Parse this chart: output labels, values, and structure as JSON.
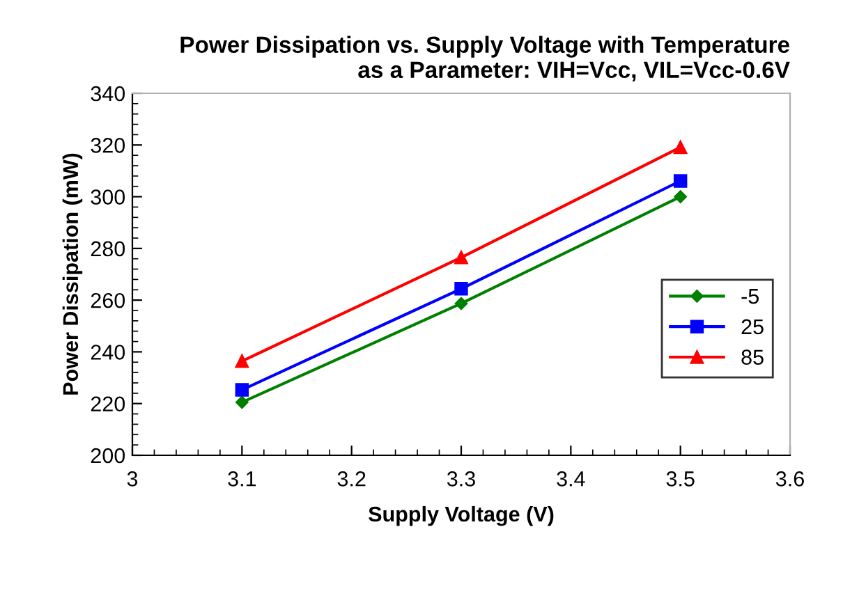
{
  "chart_data": {
    "type": "line",
    "title": "Power Dissipation vs. Supply Voltage with Temperature\nas a Parameter: VIH=Vcc, VIL=Vcc-0.6V",
    "xlabel": "Supply Voltage (V)",
    "ylabel": "Power Dissipation (mW)",
    "x": [
      3.1,
      3.3,
      3.5
    ],
    "series": [
      {
        "name": "-5",
        "color": "#008000",
        "marker": "diamond",
        "values": [
          220.5,
          258.7,
          300
        ]
      },
      {
        "name": "25",
        "color": "#0000ff",
        "marker": "square",
        "values": [
          225.3,
          264.4,
          306.1
        ]
      },
      {
        "name": "85",
        "color": "#ff0000",
        "marker": "triangle",
        "values": [
          236.4,
          276.5,
          319.1
        ]
      }
    ],
    "xlim": [
      3,
      3.6
    ],
    "xticks": [
      {
        "value": 3,
        "label": "3"
      },
      3.1,
      3.2,
      3.3,
      3.4,
      3.5,
      3.6
    ],
    "ylim": [
      200,
      340
    ],
    "yticks": [
      200,
      220,
      240,
      260,
      280,
      300,
      320,
      340
    ],
    "grid": false,
    "legend": "right",
    "line_style": "solid"
  }
}
